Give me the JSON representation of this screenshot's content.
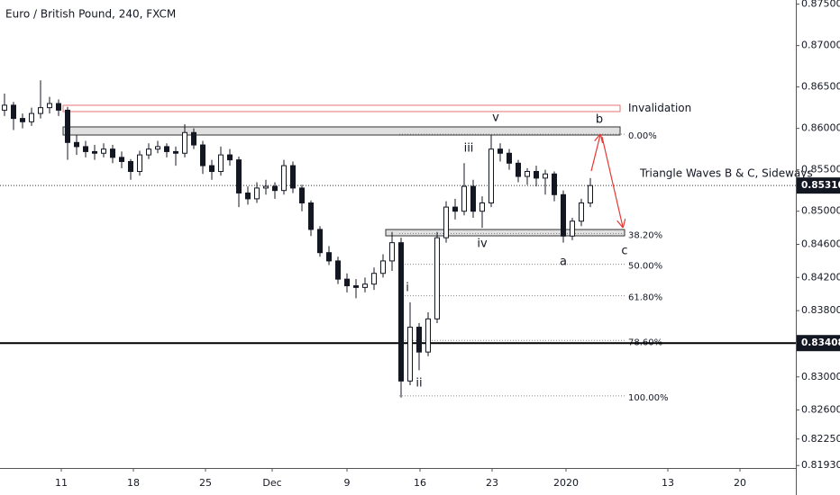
{
  "chart_data": {
    "type": "candlestick",
    "title": "Euro / British Pound, 240, FXCM",
    "color": "#131722",
    "open": [
      0.8622,
      0.8628,
      0.8612,
      0.8608,
      0.8618,
      0.8625,
      0.863,
      0.8622,
      0.8583,
      0.8578,
      0.8572,
      0.857,
      0.8575,
      0.8565,
      0.856,
      0.8548,
      0.8568,
      0.8575,
      0.8578,
      0.8572,
      0.857,
      0.8595,
      0.858,
      0.8555,
      0.8548,
      0.8568,
      0.8562,
      0.8522,
      0.8515,
      0.8528,
      0.853,
      0.8525,
      0.8555,
      0.8528,
      0.851,
      0.8478,
      0.845,
      0.844,
      0.8418,
      0.841,
      0.8408,
      0.8412,
      0.8425,
      0.844,
      0.8462,
      0.8295,
      0.836,
      0.833,
      0.837,
      0.8468,
      0.8505,
      0.85,
      0.853,
      0.85,
      0.851,
      0.8575,
      0.857,
      0.8558,
      0.8542,
      0.8548,
      0.854,
      0.8545,
      0.852,
      0.847,
      0.8488,
      0.851
    ],
    "high": [
      0.8642,
      0.8632,
      0.8618,
      0.8625,
      0.8658,
      0.8638,
      0.8635,
      0.8626,
      0.8592,
      0.8585,
      0.858,
      0.8582,
      0.858,
      0.8572,
      0.8563,
      0.8573,
      0.8582,
      0.8585,
      0.8582,
      0.8578,
      0.8605,
      0.86,
      0.8585,
      0.8562,
      0.8578,
      0.8575,
      0.8566,
      0.853,
      0.8535,
      0.8538,
      0.8535,
      0.8562,
      0.856,
      0.8532,
      0.8513,
      0.8482,
      0.8458,
      0.8445,
      0.8425,
      0.8418,
      0.842,
      0.8432,
      0.8448,
      0.8475,
      0.8468,
      0.839,
      0.8365,
      0.8378,
      0.8475,
      0.8512,
      0.8515,
      0.8558,
      0.8538,
      0.8518,
      0.8592,
      0.8582,
      0.8575,
      0.8562,
      0.8552,
      0.8555,
      0.855,
      0.8548,
      0.8525,
      0.8492,
      0.8515,
      0.854
    ],
    "low": [
      0.8615,
      0.8598,
      0.86,
      0.8603,
      0.8612,
      0.8618,
      0.8615,
      0.8562,
      0.8568,
      0.8565,
      0.8562,
      0.8565,
      0.8558,
      0.8552,
      0.8538,
      0.8543,
      0.8563,
      0.857,
      0.8565,
      0.8555,
      0.8565,
      0.8575,
      0.8545,
      0.8538,
      0.8543,
      0.8555,
      0.8505,
      0.8508,
      0.851,
      0.852,
      0.8515,
      0.852,
      0.8522,
      0.85,
      0.847,
      0.8445,
      0.8435,
      0.8412,
      0.8402,
      0.8395,
      0.8402,
      0.8405,
      0.842,
      0.8428,
      0.8275,
      0.829,
      0.8308,
      0.8325,
      0.8365,
      0.8462,
      0.849,
      0.8495,
      0.8492,
      0.848,
      0.8505,
      0.856,
      0.855,
      0.8535,
      0.8532,
      0.853,
      0.852,
      0.8512,
      0.8462,
      0.8465,
      0.8482,
      0.8505
    ],
    "close": [
      0.8628,
      0.8612,
      0.8608,
      0.8618,
      0.8625,
      0.863,
      0.8622,
      0.8583,
      0.8578,
      0.8572,
      0.857,
      0.8575,
      0.8565,
      0.856,
      0.8548,
      0.8568,
      0.8575,
      0.8578,
      0.8572,
      0.857,
      0.8595,
      0.858,
      0.8555,
      0.8548,
      0.8568,
      0.8562,
      0.8522,
      0.8515,
      0.8528,
      0.853,
      0.8525,
      0.8555,
      0.8528,
      0.851,
      0.8478,
      0.845,
      0.844,
      0.8418,
      0.841,
      0.8408,
      0.8412,
      0.8425,
      0.844,
      0.8462,
      0.8295,
      0.836,
      0.833,
      0.837,
      0.8468,
      0.8505,
      0.85,
      0.853,
      0.85,
      0.851,
      0.8575,
      0.857,
      0.8558,
      0.8542,
      0.8548,
      0.854,
      0.8545,
      0.852,
      0.847,
      0.8488,
      0.851,
      0.8531
    ],
    "xlim": [
      -0.5,
      87.8
    ],
    "xticks": [
      {
        "value": 6.3,
        "label": "11"
      },
      {
        "value": 14.3,
        "label": "18"
      },
      {
        "value": 22.3,
        "label": "25"
      },
      {
        "value": 29.7,
        "label": "Dec"
      },
      {
        "value": 38,
        "label": "9"
      },
      {
        "value": 46.1,
        "label": "16"
      },
      {
        "value": 54.1,
        "label": "23"
      },
      {
        "value": 62.3,
        "label": "2020"
      },
      {
        "value": 73.6,
        "label": "13"
      },
      {
        "value": 81.6,
        "label": "20"
      }
    ],
    "ylim": [
      0.819,
      0.8755
    ],
    "yticks": [
      {
        "value": 0.875,
        "label": "0.87500"
      },
      {
        "value": 0.87,
        "label": "0.87000"
      },
      {
        "value": 0.865,
        "label": "0.86500"
      },
      {
        "value": 0.86,
        "label": "0.86000"
      },
      {
        "value": 0.855,
        "label": "0.85500"
      },
      {
        "value": 0.85,
        "label": "0.85000"
      },
      {
        "value": 0.846,
        "label": "0.84600"
      },
      {
        "value": 0.842,
        "label": "0.84200"
      },
      {
        "value": 0.838,
        "label": "0.83800"
      },
      {
        "value": 0.83,
        "label": "0.83000"
      },
      {
        "value": 0.826,
        "label": "0.82600"
      },
      {
        "value": 0.8225,
        "label": "0.82250"
      },
      {
        "value": 0.8193,
        "label": "0.81930"
      }
    ],
    "price_line": {
      "value": 0.8531,
      "label": "0.85310"
    },
    "level_line": {
      "value": 0.83408,
      "label": "0.83408"
    },
    "zones": [
      {
        "low": 0.86203,
        "high": 0.86279,
        "label": "Invalidation"
      },
      {
        "low": 0.8592,
        "high": 0.86018
      },
      {
        "low": 0.84703,
        "high": 0.84779
      }
    ],
    "fib_levels": [
      {
        "label": "0.00%",
        "price": 0.8593
      },
      {
        "label": "38.20%",
        "price": 0.8473
      },
      {
        "label": "50.00%",
        "price": 0.8436
      },
      {
        "label": "61.80%",
        "price": 0.8398
      },
      {
        "label": "78.60%",
        "price": 0.8344
      },
      {
        "label": "100.00%",
        "price": 0.8277
      }
    ],
    "waves": [
      "i",
      "ii",
      "iii",
      "iv",
      "v",
      "a",
      "b",
      "c"
    ],
    "annotation": "Triangle Waves B & C, Sideways"
  }
}
